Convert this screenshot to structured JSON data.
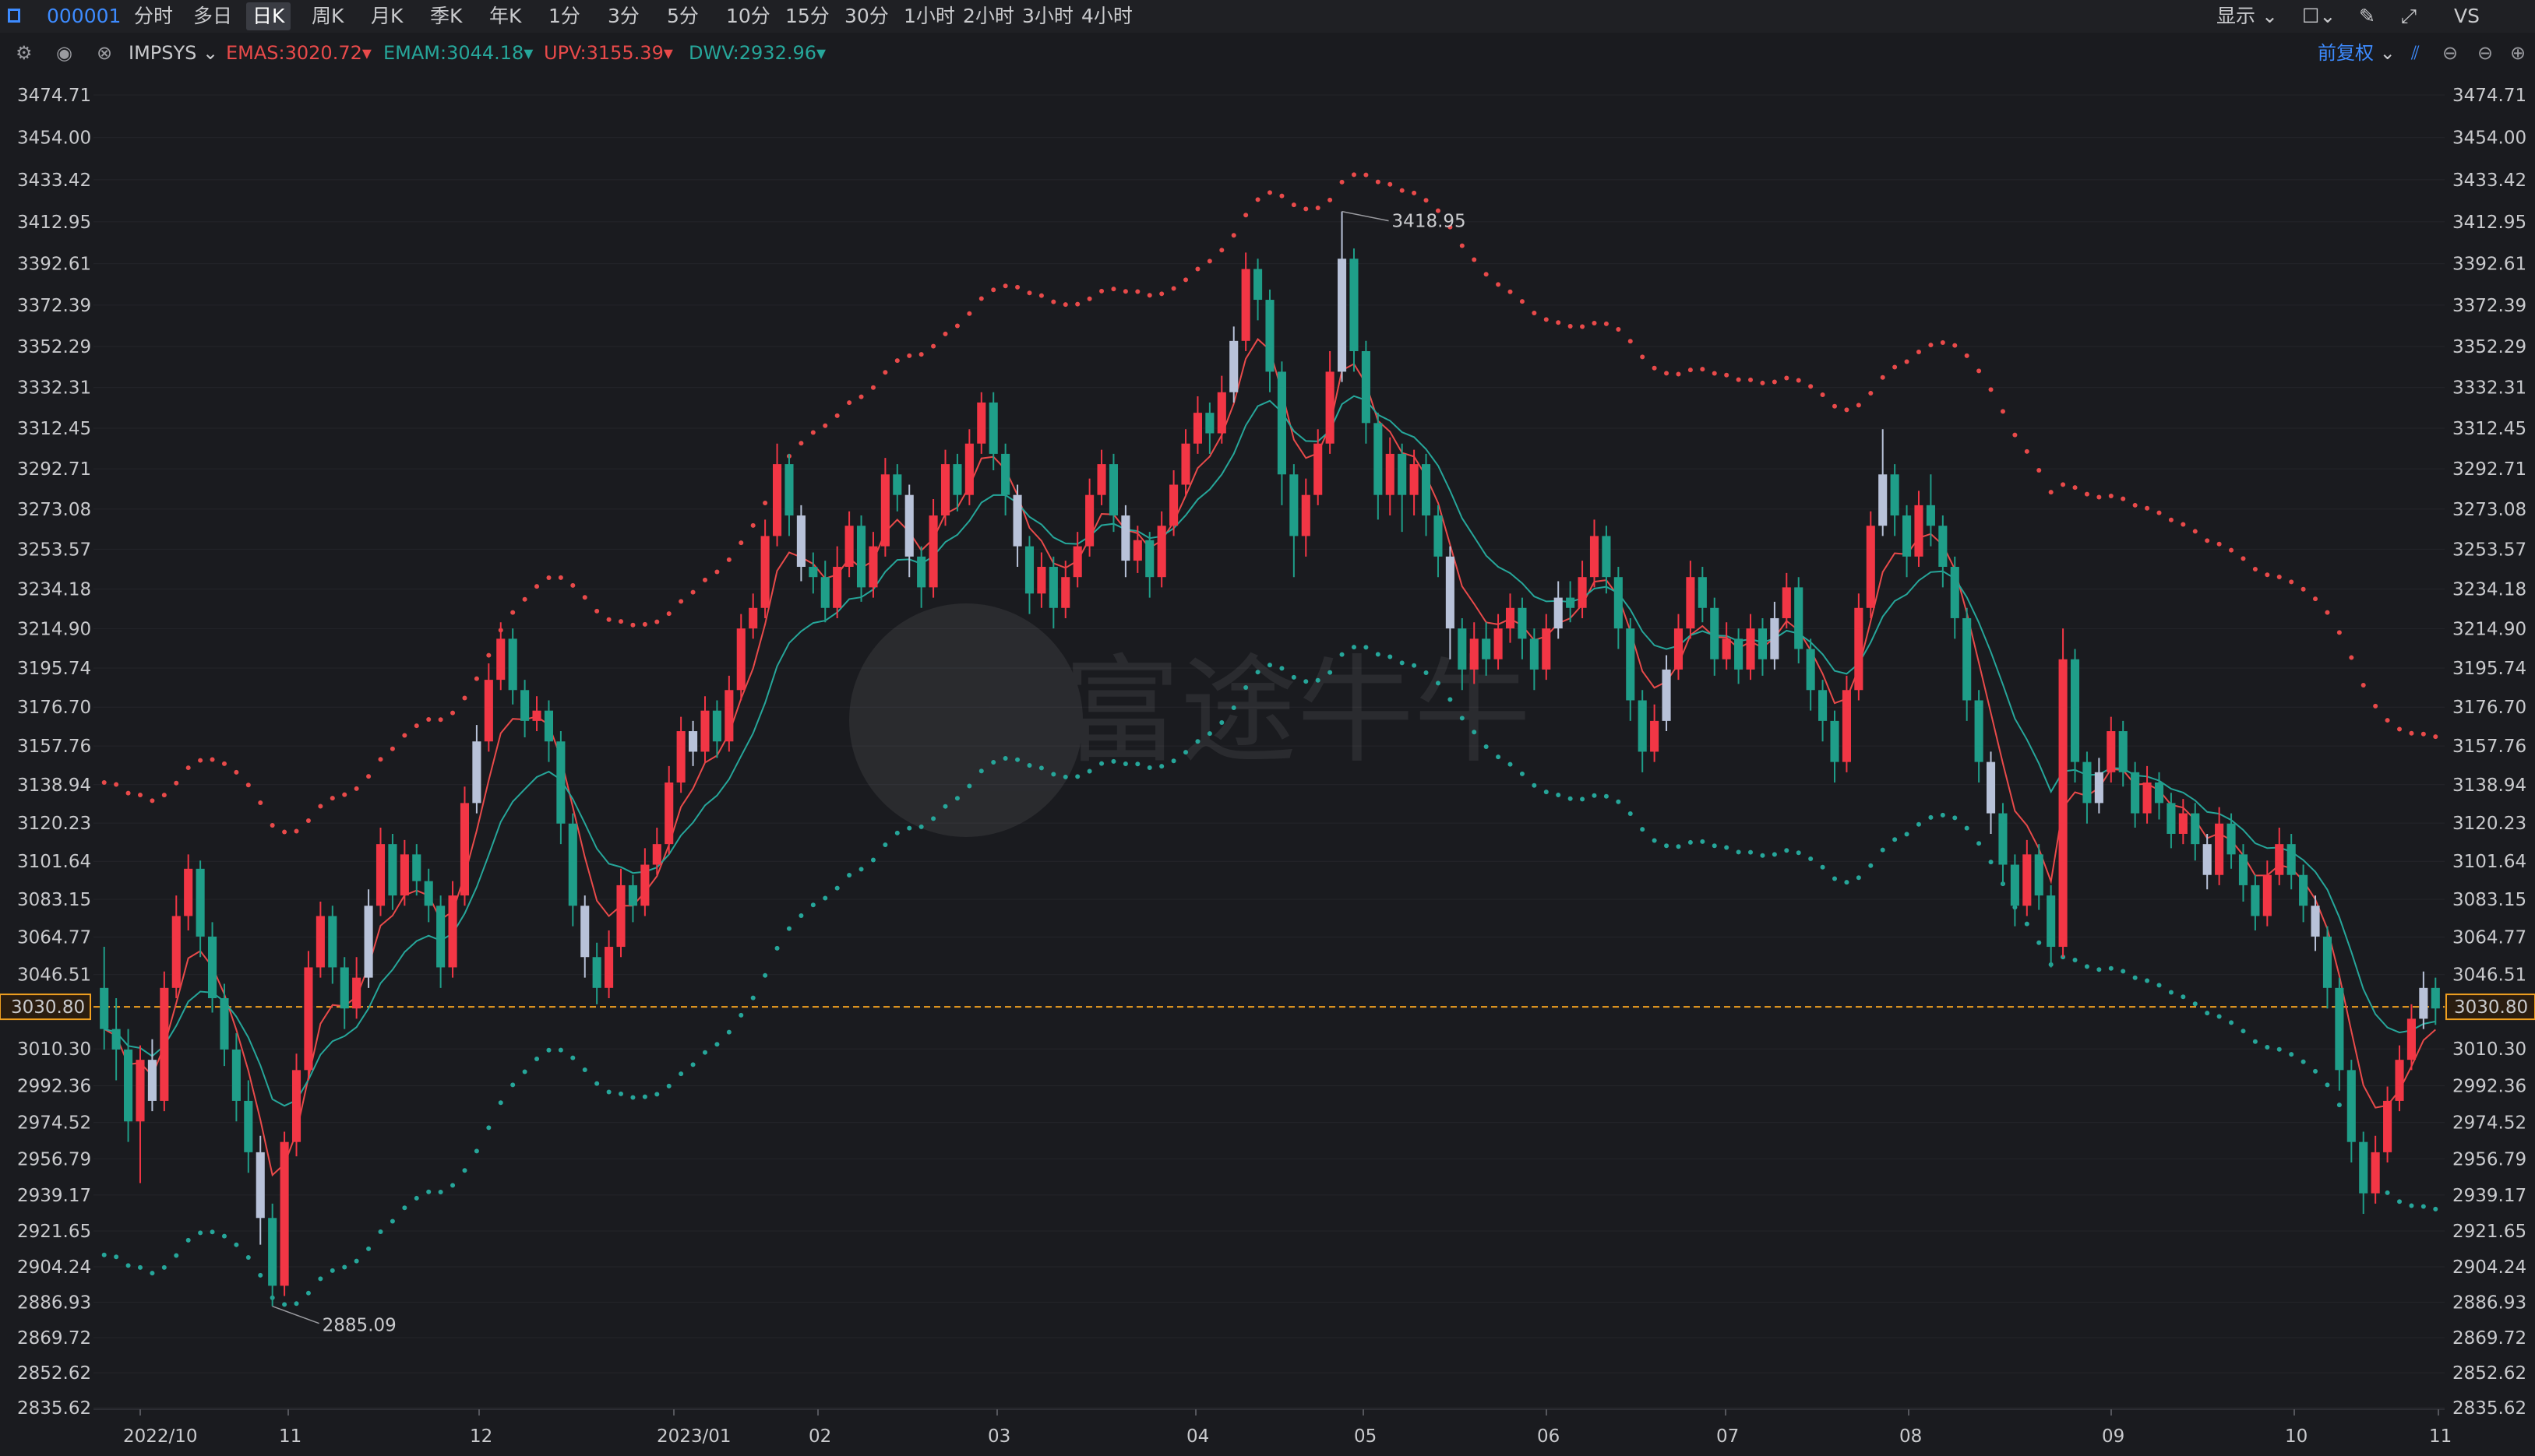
{
  "toolbar": {
    "symbol": "000001",
    "periods": [
      "分时",
      "多日",
      "日K",
      "周K",
      "月K",
      "季K",
      "年K",
      "1分",
      "3分",
      "5分",
      "10分",
      "15分",
      "30分",
      "1小时",
      "2小时",
      "3小时",
      "4小时"
    ],
    "active_period": "日K",
    "display_label": "显示",
    "vs_label": "VS"
  },
  "indicator_bar": {
    "name": "IMPSYS",
    "emas": "EMAS:3020.72",
    "emam": "EMAM:3044.18",
    "upv": "UPV:3155.39",
    "dwv": "DWV:2932.96",
    "adjust_label": "前复权"
  },
  "colors": {
    "up": "#f23645",
    "down": "#1f9e89",
    "neutral": "#b8c2d9",
    "emas": "#e84a4a",
    "emam": "#26a69a",
    "upv": "#e84a4a",
    "dwv": "#26a69a",
    "current": "#f0a020"
  },
  "watermark": "富途牛牛",
  "chart_data": {
    "type": "candlestick",
    "y_ticks": [
      "3474.71",
      "3454.00",
      "3433.42",
      "3412.95",
      "3392.61",
      "3372.39",
      "3352.29",
      "3332.31",
      "3312.45",
      "3292.71",
      "3273.08",
      "3253.57",
      "3234.18",
      "3214.90",
      "3195.74",
      "3176.70",
      "3157.76",
      "3138.94",
      "3120.23",
      "3101.64",
      "3083.15",
      "3064.77",
      "3046.51",
      "3030.80",
      "3010.30",
      "2992.36",
      "2974.52",
      "2956.79",
      "2939.17",
      "2921.65",
      "2904.24",
      "2886.93",
      "2869.72",
      "2852.62",
      "2835.62"
    ],
    "ylim": [
      2835.62,
      3474.71
    ],
    "x_ticks": [
      "2022/10",
      "11",
      "12",
      "2023/01",
      "02",
      "03",
      "04",
      "05",
      "06",
      "07",
      "08",
      "09",
      "10",
      "11"
    ],
    "current_price": "3030.80",
    "high_annotation": "3418.95",
    "low_annotation": "2885.09",
    "candles": [
      [
        3040,
        3020,
        3060,
        3010
      ],
      [
        3020,
        3010,
        3035,
        2995
      ],
      [
        3010,
        2975,
        3020,
        2965
      ],
      [
        2975,
        3005,
        3012,
        2945
      ],
      [
        3005,
        2985,
        3015,
        2980
      ],
      [
        2985,
        3040,
        3048,
        2980
      ],
      [
        3040,
        3075,
        3085,
        3035
      ],
      [
        3075,
        3098,
        3105,
        3068
      ],
      [
        3098,
        3065,
        3102,
        3055
      ],
      [
        3065,
        3035,
        3072,
        3028
      ],
      [
        3035,
        3010,
        3042,
        3002
      ],
      [
        3010,
        2985,
        3018,
        2975
      ],
      [
        2985,
        2960,
        2995,
        2950
      ],
      [
        2960,
        2928,
        2968,
        2915
      ],
      [
        2928,
        2895,
        2935,
        2885
      ],
      [
        2895,
        2965,
        2970,
        2890
      ],
      [
        2965,
        3000,
        3008,
        2958
      ],
      [
        3000,
        3050,
        3058,
        2995
      ],
      [
        3050,
        3075,
        3082,
        3045
      ],
      [
        3075,
        3050,
        3080,
        3042
      ],
      [
        3050,
        3030,
        3055,
        3020
      ],
      [
        3030,
        3045,
        3055,
        3025
      ],
      [
        3045,
        3080,
        3088,
        3040
      ],
      [
        3080,
        3110,
        3118,
        3075
      ],
      [
        3110,
        3085,
        3115,
        3078
      ],
      [
        3085,
        3105,
        3112,
        3080
      ],
      [
        3105,
        3092,
        3110,
        3085
      ],
      [
        3092,
        3080,
        3098,
        3072
      ],
      [
        3080,
        3050,
        3085,
        3040
      ],
      [
        3050,
        3085,
        3092,
        3045
      ],
      [
        3085,
        3130,
        3138,
        3080
      ],
      [
        3130,
        3160,
        3168,
        3125
      ],
      [
        3160,
        3190,
        3198,
        3155
      ],
      [
        3190,
        3210,
        3218,
        3185
      ],
      [
        3210,
        3185,
        3215,
        3178
      ],
      [
        3185,
        3170,
        3190,
        3162
      ],
      [
        3170,
        3175,
        3182,
        3165
      ],
      [
        3175,
        3160,
        3180,
        3150
      ],
      [
        3160,
        3120,
        3165,
        3110
      ],
      [
        3120,
        3080,
        3125,
        3070
      ],
      [
        3080,
        3055,
        3085,
        3045
      ],
      [
        3055,
        3040,
        3062,
        3032
      ],
      [
        3040,
        3060,
        3068,
        3035
      ],
      [
        3060,
        3090,
        3098,
        3055
      ],
      [
        3090,
        3080,
        3095,
        3072
      ],
      [
        3080,
        3100,
        3108,
        3075
      ],
      [
        3100,
        3110,
        3118,
        3095
      ],
      [
        3110,
        3140,
        3148,
        3105
      ],
      [
        3140,
        3165,
        3172,
        3135
      ],
      [
        3165,
        3155,
        3170,
        3148
      ],
      [
        3155,
        3175,
        3182,
        3150
      ],
      [
        3175,
        3160,
        3180,
        3152
      ],
      [
        3160,
        3185,
        3192,
        3155
      ],
      [
        3185,
        3215,
        3222,
        3180
      ],
      [
        3215,
        3225,
        3232,
        3210
      ],
      [
        3225,
        3260,
        3268,
        3220
      ],
      [
        3260,
        3295,
        3305,
        3255
      ],
      [
        3295,
        3270,
        3300,
        3260
      ],
      [
        3270,
        3245,
        3275,
        3238
      ],
      [
        3245,
        3240,
        3252,
        3232
      ],
      [
        3240,
        3225,
        3248,
        3218
      ],
      [
        3225,
        3245,
        3255,
        3220
      ],
      [
        3245,
        3265,
        3272,
        3240
      ],
      [
        3265,
        3235,
        3270,
        3228
      ],
      [
        3235,
        3255,
        3262,
        3230
      ],
      [
        3255,
        3290,
        3298,
        3250
      ],
      [
        3290,
        3280,
        3295,
        3272
      ],
      [
        3280,
        3250,
        3285,
        3240
      ],
      [
        3250,
        3235,
        3255,
        3225
      ],
      [
        3235,
        3270,
        3278,
        3230
      ],
      [
        3270,
        3295,
        3302,
        3265
      ],
      [
        3295,
        3280,
        3300,
        3272
      ],
      [
        3280,
        3305,
        3312,
        3275
      ],
      [
        3305,
        3325,
        3330,
        3300
      ],
      [
        3325,
        3300,
        3330,
        3292
      ],
      [
        3300,
        3280,
        3305,
        3270
      ],
      [
        3280,
        3255,
        3285,
        3245
      ],
      [
        3255,
        3232,
        3260,
        3222
      ],
      [
        3232,
        3245,
        3252,
        3225
      ],
      [
        3245,
        3225,
        3250,
        3215
      ],
      [
        3225,
        3240,
        3248,
        3220
      ],
      [
        3240,
        3255,
        3262,
        3235
      ],
      [
        3255,
        3280,
        3288,
        3250
      ],
      [
        3280,
        3295,
        3302,
        3275
      ],
      [
        3295,
        3270,
        3300,
        3262
      ],
      [
        3270,
        3248,
        3275,
        3240
      ],
      [
        3248,
        3258,
        3265,
        3242
      ],
      [
        3258,
        3240,
        3262,
        3230
      ],
      [
        3240,
        3265,
        3272,
        3235
      ],
      [
        3265,
        3285,
        3292,
        3260
      ],
      [
        3285,
        3305,
        3312,
        3280
      ],
      [
        3305,
        3320,
        3328,
        3300
      ],
      [
        3320,
        3310,
        3325,
        3300
      ],
      [
        3310,
        3330,
        3338,
        3305
      ],
      [
        3330,
        3355,
        3362,
        3325
      ],
      [
        3355,
        3390,
        3398,
        3350
      ],
      [
        3390,
        3375,
        3395,
        3365
      ],
      [
        3375,
        3340,
        3380,
        3330
      ],
      [
        3340,
        3290,
        3345,
        3275
      ],
      [
        3290,
        3260,
        3295,
        3240
      ],
      [
        3260,
        3280,
        3288,
        3250
      ],
      [
        3280,
        3305,
        3312,
        3275
      ],
      [
        3305,
        3340,
        3350,
        3300
      ],
      [
        3340,
        3395,
        3418,
        3335
      ],
      [
        3395,
        3350,
        3400,
        3340
      ],
      [
        3350,
        3315,
        3355,
        3305
      ],
      [
        3315,
        3280,
        3320,
        3268
      ],
      [
        3280,
        3300,
        3308,
        3270
      ],
      [
        3300,
        3280,
        3305,
        3262
      ],
      [
        3280,
        3295,
        3302,
        3270
      ],
      [
        3295,
        3270,
        3300,
        3260
      ],
      [
        3270,
        3250,
        3275,
        3240
      ],
      [
        3250,
        3215,
        3255,
        3200
      ],
      [
        3215,
        3195,
        3220,
        3185
      ],
      [
        3195,
        3210,
        3218,
        3188
      ],
      [
        3210,
        3200,
        3218,
        3192
      ],
      [
        3200,
        3215,
        3222,
        3195
      ],
      [
        3215,
        3225,
        3232,
        3208
      ],
      [
        3225,
        3210,
        3230,
        3200
      ],
      [
        3210,
        3195,
        3215,
        3185
      ],
      [
        3195,
        3215,
        3222,
        3190
      ],
      [
        3215,
        3230,
        3238,
        3210
      ],
      [
        3230,
        3225,
        3238,
        3218
      ],
      [
        3225,
        3240,
        3248,
        3220
      ],
      [
        3240,
        3260,
        3268,
        3235
      ],
      [
        3260,
        3240,
        3265,
        3232
      ],
      [
        3240,
        3215,
        3245,
        3205
      ],
      [
        3215,
        3180,
        3220,
        3170
      ],
      [
        3180,
        3155,
        3185,
        3145
      ],
      [
        3155,
        3170,
        3178,
        3150
      ],
      [
        3170,
        3195,
        3202,
        3165
      ],
      [
        3195,
        3215,
        3222,
        3190
      ],
      [
        3215,
        3240,
        3248,
        3210
      ],
      [
        3240,
        3225,
        3245,
        3218
      ],
      [
        3225,
        3200,
        3230,
        3192
      ],
      [
        3200,
        3210,
        3218,
        3195
      ],
      [
        3210,
        3195,
        3215,
        3188
      ],
      [
        3195,
        3215,
        3222,
        3190
      ],
      [
        3215,
        3200,
        3220,
        3192
      ],
      [
        3200,
        3220,
        3228,
        3195
      ],
      [
        3220,
        3235,
        3242,
        3215
      ],
      [
        3235,
        3205,
        3240,
        3198
      ],
      [
        3205,
        3185,
        3210,
        3175
      ],
      [
        3185,
        3170,
        3190,
        3160
      ],
      [
        3170,
        3150,
        3175,
        3140
      ],
      [
        3150,
        3185,
        3192,
        3145
      ],
      [
        3185,
        3225,
        3232,
        3180
      ],
      [
        3225,
        3265,
        3272,
        3220
      ],
      [
        3265,
        3290,
        3312,
        3260
      ],
      [
        3290,
        3270,
        3295,
        3260
      ],
      [
        3270,
        3250,
        3275,
        3240
      ],
      [
        3250,
        3275,
        3282,
        3245
      ],
      [
        3275,
        3265,
        3290,
        3255
      ],
      [
        3265,
        3245,
        3270,
        3235
      ],
      [
        3245,
        3220,
        3250,
        3210
      ],
      [
        3220,
        3180,
        3225,
        3170
      ],
      [
        3180,
        3150,
        3185,
        3140
      ],
      [
        3150,
        3125,
        3155,
        3115
      ],
      [
        3125,
        3100,
        3130,
        3090
      ],
      [
        3100,
        3080,
        3105,
        3070
      ],
      [
        3080,
        3105,
        3112,
        3075
      ],
      [
        3105,
        3085,
        3110,
        3078
      ],
      [
        3085,
        3060,
        3090,
        3050
      ],
      [
        3060,
        3200,
        3215,
        3055
      ],
      [
        3200,
        3150,
        3205,
        3140
      ],
      [
        3150,
        3130,
        3155,
        3120
      ],
      [
        3130,
        3145,
        3152,
        3125
      ],
      [
        3145,
        3165,
        3172,
        3140
      ],
      [
        3165,
        3145,
        3170,
        3138
      ],
      [
        3145,
        3125,
        3150,
        3118
      ],
      [
        3125,
        3140,
        3148,
        3120
      ],
      [
        3140,
        3130,
        3145,
        3122
      ],
      [
        3130,
        3115,
        3135,
        3108
      ],
      [
        3115,
        3125,
        3132,
        3110
      ],
      [
        3125,
        3110,
        3130,
        3102
      ],
      [
        3110,
        3095,
        3115,
        3088
      ],
      [
        3095,
        3120,
        3128,
        3090
      ],
      [
        3120,
        3105,
        3125,
        3098
      ],
      [
        3105,
        3090,
        3110,
        3082
      ],
      [
        3090,
        3075,
        3095,
        3068
      ],
      [
        3075,
        3095,
        3102,
        3070
      ],
      [
        3095,
        3110,
        3118,
        3090
      ],
      [
        3110,
        3095,
        3115,
        3088
      ],
      [
        3095,
        3080,
        3100,
        3072
      ],
      [
        3080,
        3065,
        3085,
        3058
      ],
      [
        3065,
        3040,
        3070,
        3030
      ],
      [
        3040,
        3000,
        3045,
        2990
      ],
      [
        3000,
        2965,
        3005,
        2955
      ],
      [
        2965,
        2940,
        2970,
        2930
      ],
      [
        2940,
        2960,
        2968,
        2935
      ],
      [
        2960,
        2985,
        2992,
        2955
      ],
      [
        2985,
        3005,
        3012,
        2980
      ],
      [
        3005,
        3025,
        3032,
        3000
      ],
      [
        3025,
        3040,
        3048,
        3020
      ],
      [
        3040,
        3030,
        3045,
        3022
      ]
    ]
  }
}
